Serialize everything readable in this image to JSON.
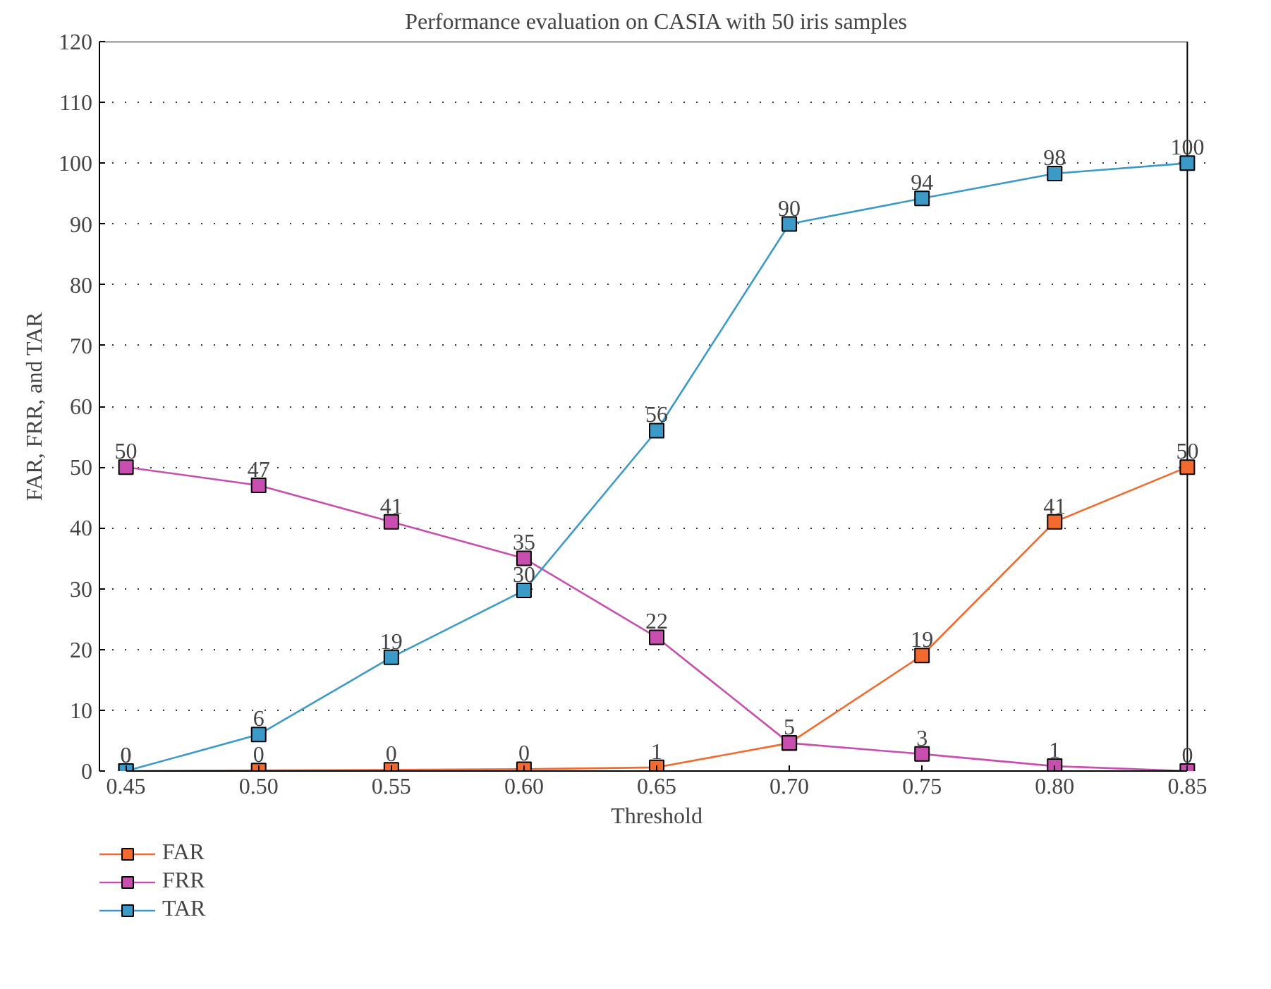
{
  "chart_data": {
    "type": "line",
    "title": "Performance evaluation on CASIA with 50 iris samples",
    "xlabel": "Threshold",
    "ylabel": "FAR, FRR, and TAR",
    "x": [
      0.45,
      0.5,
      0.55,
      0.6,
      0.65,
      0.7,
      0.75,
      0.8,
      0.85
    ],
    "series": [
      {
        "name": "FAR",
        "color": "#f26a2e",
        "values": [
          0,
          0.1,
          0.2,
          0.3,
          0.6,
          4.6,
          19,
          41,
          50
        ],
        "value_labels": [
          "0",
          "0",
          "0",
          "0",
          "1",
          "5",
          "19",
          "41",
          "50"
        ]
      },
      {
        "name": "FRR",
        "color": "#c84fb0",
        "values": [
          50,
          47,
          41,
          35,
          22,
          4.6,
          2.8,
          0.8,
          0
        ],
        "value_labels": [
          "50",
          "47",
          "41",
          "35",
          "22",
          null,
          "3",
          "1",
          "0"
        ]
      },
      {
        "name": "TAR",
        "color": "#3c9ac9",
        "values": [
          0,
          6,
          18.7,
          29.7,
          56,
          90,
          94.2,
          98.3,
          100
        ],
        "value_labels": [
          "0",
          "6",
          "19",
          "30",
          "56",
          "90",
          "94",
          "98",
          "100"
        ]
      }
    ],
    "xlim": [
      0.45,
      0.85
    ],
    "xticks": [
      0.45,
      {
        "value": 0.5,
        "label": "0.50"
      },
      0.55,
      {
        "value": 0.6,
        "label": "0.60"
      },
      0.65,
      {
        "value": 0.7,
        "label": "0.70"
      },
      0.75,
      {
        "value": 0.8,
        "label": "0.80"
      },
      0.85
    ],
    "ylim": [
      0,
      120
    ],
    "yticks": [
      0,
      10,
      20,
      30,
      40,
      50,
      60,
      70,
      80,
      90,
      100,
      110,
      120
    ],
    "grid": "y",
    "legend": "bottom left",
    "marker": "square",
    "line_style": "solid"
  }
}
